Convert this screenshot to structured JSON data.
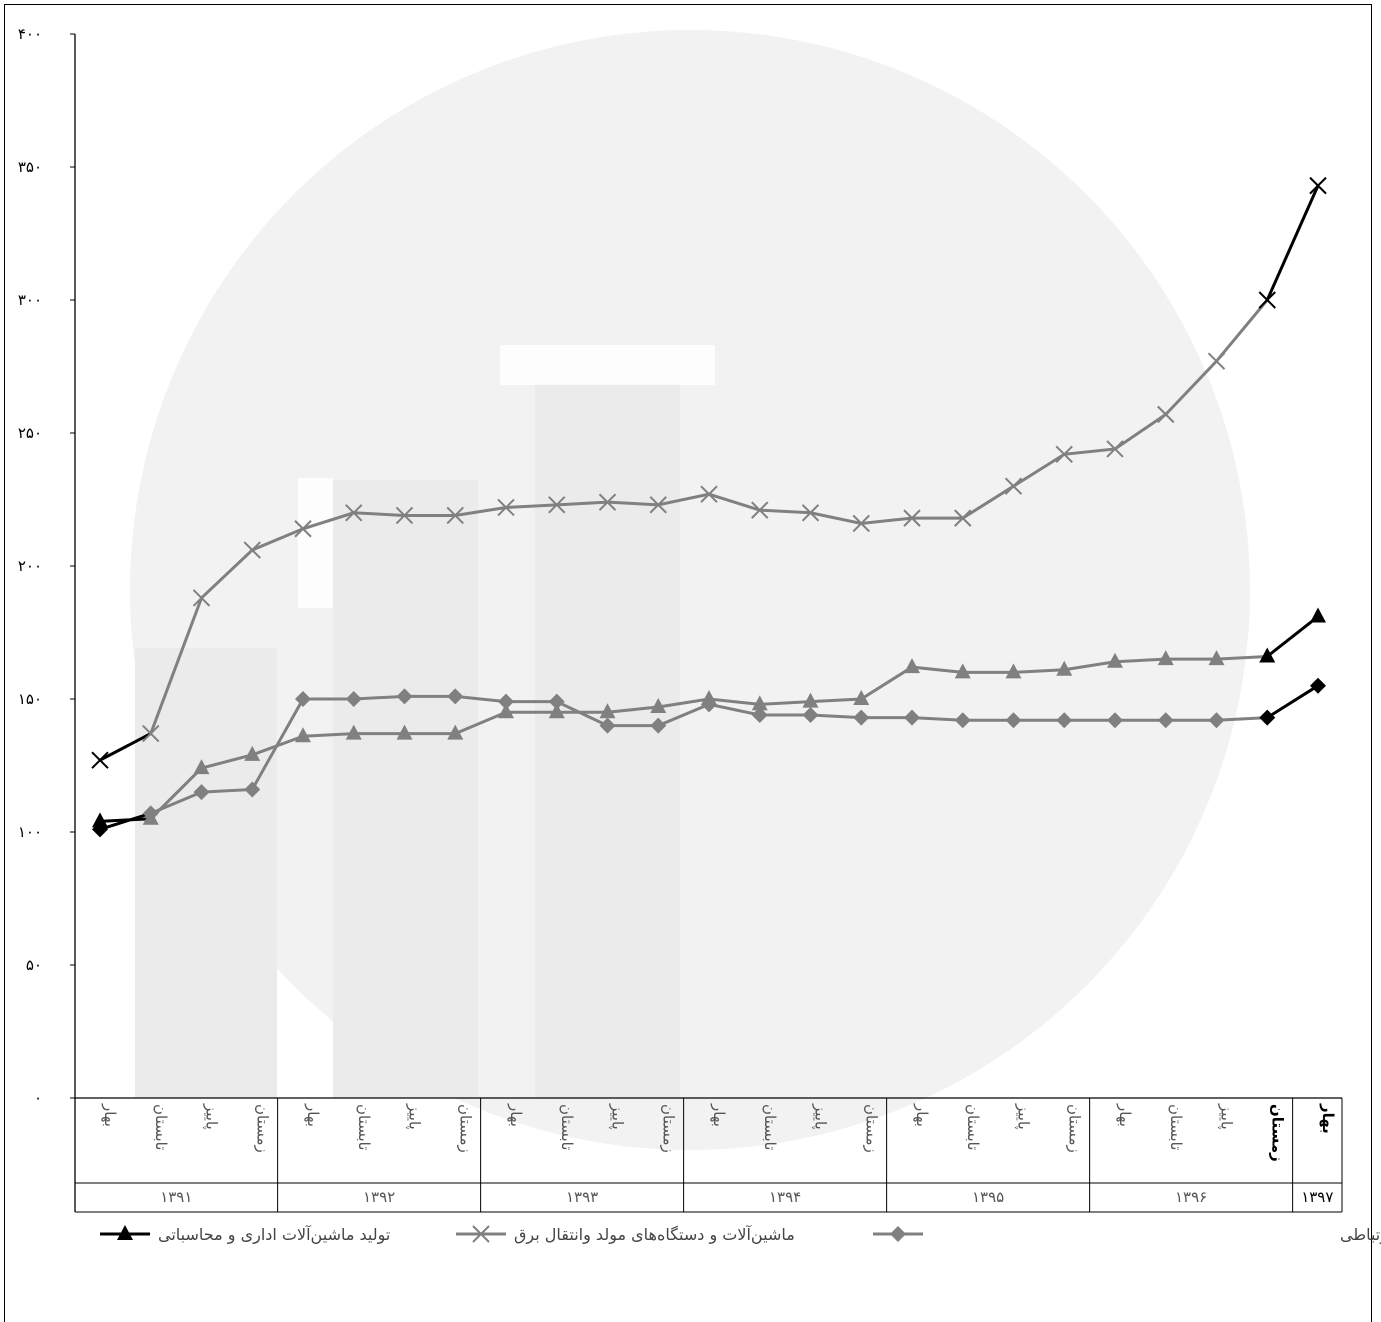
{
  "chart_data": {
    "type": "line",
    "title": "",
    "xlabel": "",
    "ylabel": "",
    "ylim": [
      0,
      400
    ],
    "yticks": [
      "۰",
      "۵۰",
      "۱۰۰",
      "۱۵۰",
      "۲۰۰",
      "۲۵۰",
      "۳۰۰",
      "۳۵۰",
      "۴۰۰"
    ],
    "grid": false,
    "legend_position": "bottom",
    "categories": [
      "بهار",
      "تابستان",
      "پاییز",
      "زمستان",
      "بهار",
      "تابستان",
      "پاییز",
      "زمستان",
      "بهار",
      "تابستان",
      "پاییز",
      "زمستان",
      "بهار",
      "تابستان",
      "پاییز",
      "زمستان",
      "بهار",
      "تابستان",
      "پاییز",
      "زمستان",
      "بهار",
      "تابستان",
      "پاییز",
      "زمستان",
      "بهار"
    ],
    "years": [
      {
        "label": "۱۳۹۱",
        "count": 4
      },
      {
        "label": "۱۳۹۲",
        "count": 4
      },
      {
        "label": "۱۳۹۳",
        "count": 4
      },
      {
        "label": "۱۳۹۴",
        "count": 4
      },
      {
        "label": "۱۳۹۵",
        "count": 4
      },
      {
        "label": "۱۳۹۶",
        "count": 4
      },
      {
        "label": "۱۳۹۷",
        "count": 1
      }
    ],
    "series": [
      {
        "name": "تولید ماشین‌آلات اداری و محاسباتی",
        "marker": "triangle",
        "values": [
          104,
          105,
          124,
          129,
          136,
          137,
          137,
          137,
          145,
          145,
          145,
          147,
          150,
          148,
          149,
          150,
          162,
          160,
          160,
          161,
          164,
          165,
          165,
          166,
          181
        ]
      },
      {
        "name": "ماشین‌آلات و دستگاه‌های مولد وانتقال برق",
        "marker": "x",
        "values": [
          127,
          137,
          188,
          206,
          214,
          220,
          219,
          219,
          222,
          223,
          224,
          223,
          227,
          221,
          220,
          216,
          218,
          218,
          230,
          242,
          244,
          257,
          277,
          300,
          343
        ]
      },
      {
        "name": "تولید رادیو و تلویزیون و دستگاه‌ها و وسایل ارتباطی",
        "marker": "diamond",
        "values": [
          101,
          107,
          115,
          116,
          150,
          150,
          151,
          151,
          149,
          149,
          140,
          140,
          148,
          144,
          144,
          143,
          143,
          142,
          142,
          142,
          142,
          142,
          142,
          143,
          155
        ]
      }
    ]
  },
  "colors": {
    "series_line": "#808080",
    "highlight_line": "#000000",
    "axis": "#000000",
    "watermark": "#f2f2f2"
  },
  "legend_extra": {
    "bold_prefix": "تولید رادیو",
    "rest": " و تلویزیون و دستگاه‌ها و وسایل ارتباطی"
  }
}
